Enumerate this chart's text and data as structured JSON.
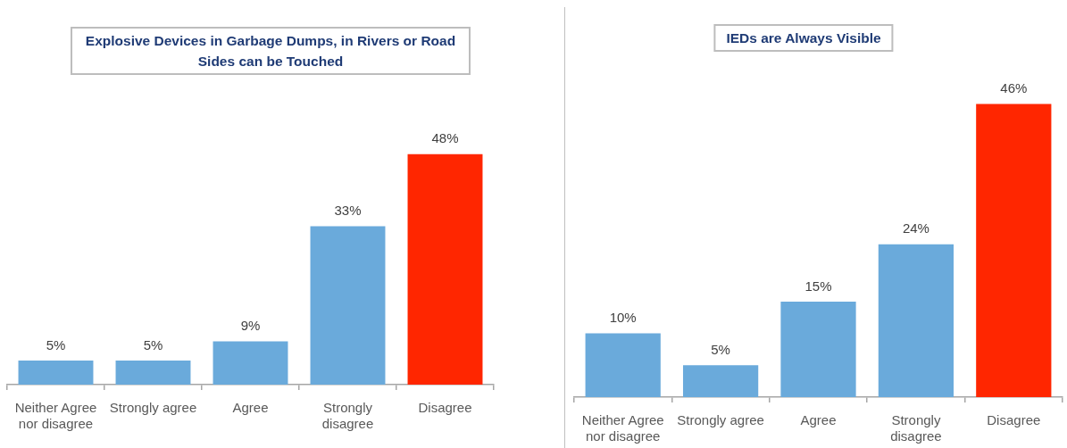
{
  "chart_data": [
    {
      "type": "bar",
      "title": "Explosive Devices in Garbage Dumps, in Rivers or Road Sides can be Touched",
      "categories": [
        "Neither Agree nor disagree",
        "Strongly agree",
        "Agree",
        "Strongly disagree",
        "Disagree"
      ],
      "values": [
        5,
        5,
        9,
        33,
        48
      ],
      "colors": [
        "#6aaadb",
        "#6aaadb",
        "#6aaadb",
        "#6aaadb",
        "#ff2600"
      ],
      "value_labels": [
        "5%",
        "5%",
        "9%",
        "33%",
        "48%"
      ],
      "tick_labels": "x"
    },
    {
      "type": "bar",
      "title": "IEDs are Always Visible",
      "categories": [
        "Neither Agree nor disagree",
        "Strongly agree",
        "Agree",
        "Strongly disagree",
        "Disagree"
      ],
      "values": [
        10,
        5,
        15,
        24,
        46
      ],
      "colors": [
        "#6aaadb",
        "#6aaadb",
        "#6aaadb",
        "#6aaadb",
        "#ff2600"
      ],
      "value_labels": [
        "10%",
        "5%",
        "15%",
        "24%",
        "46%"
      ],
      "tick_labels": "x"
    }
  ]
}
